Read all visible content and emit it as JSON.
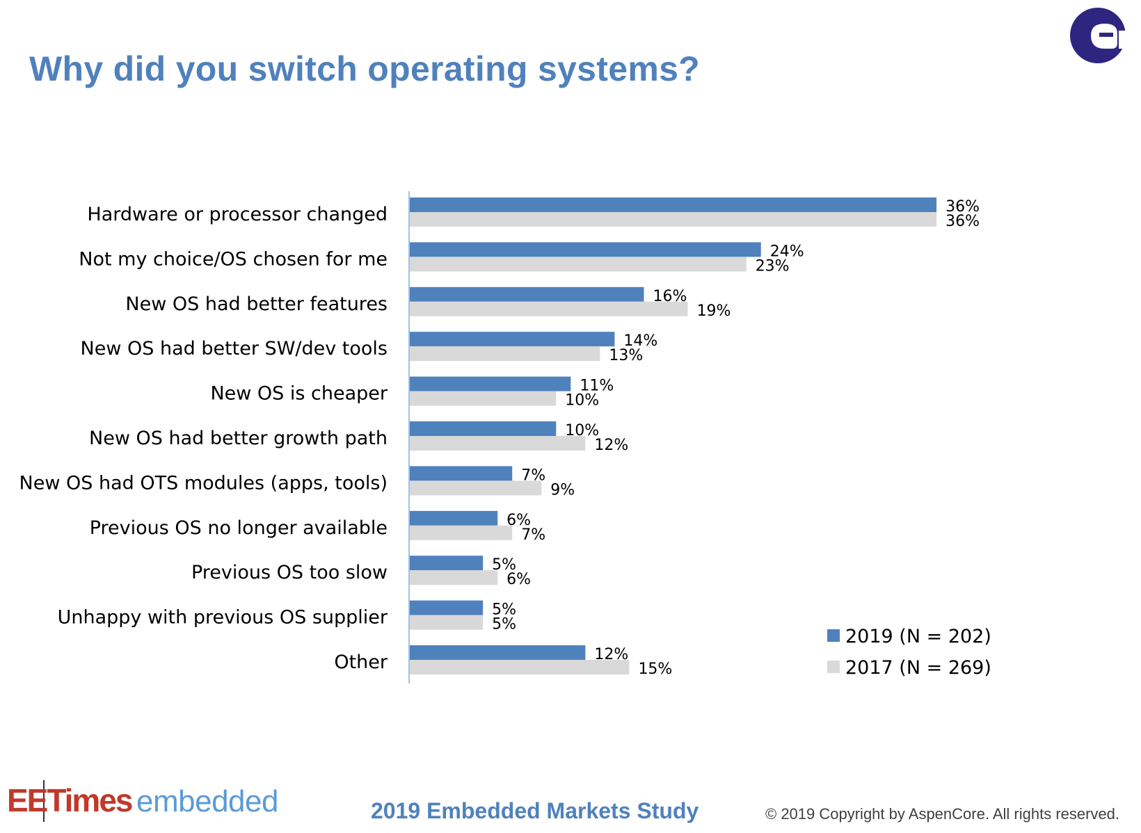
{
  "page": {
    "title": "Why did you switch operating systems?",
    "footer": {
      "brand_primary": "EETimes",
      "brand_secondary": "embedded",
      "study": "2019 Embedded Markets Study",
      "copyright": "© 2019 Copyright by AspenCore. All rights reserved."
    },
    "logo": {
      "icon": "aspencore-logo-icon",
      "color": "#2e2580"
    }
  },
  "chart_data": {
    "type": "bar",
    "orientation": "horizontal",
    "categories": [
      "Hardware or processor changed",
      "Not my choice/OS chosen for me",
      "New OS had better features",
      "New OS had better SW/dev tools",
      "New OS is cheaper",
      "New OS had better growth path",
      "New OS had OTS modules (apps, tools)",
      "Previous OS no longer available",
      "Previous OS too slow",
      "Unhappy with previous OS supplier",
      "Other"
    ],
    "series": [
      {
        "name": "2019 (N = 202)",
        "color": "#4f81bd",
        "values": [
          36,
          24,
          16,
          14,
          11,
          10,
          7,
          6,
          5,
          5,
          12
        ]
      },
      {
        "name": "2017 (N = 269)",
        "color": "#d9d9d9",
        "values": [
          36,
          23,
          19,
          13,
          10,
          12,
          9,
          7,
          6,
          5,
          15
        ]
      }
    ],
    "value_suffix": "%",
    "xlim": [
      0,
      40
    ],
    "grid": false,
    "legend": "bottom-right",
    "axis_color": "#9dc3e6"
  }
}
